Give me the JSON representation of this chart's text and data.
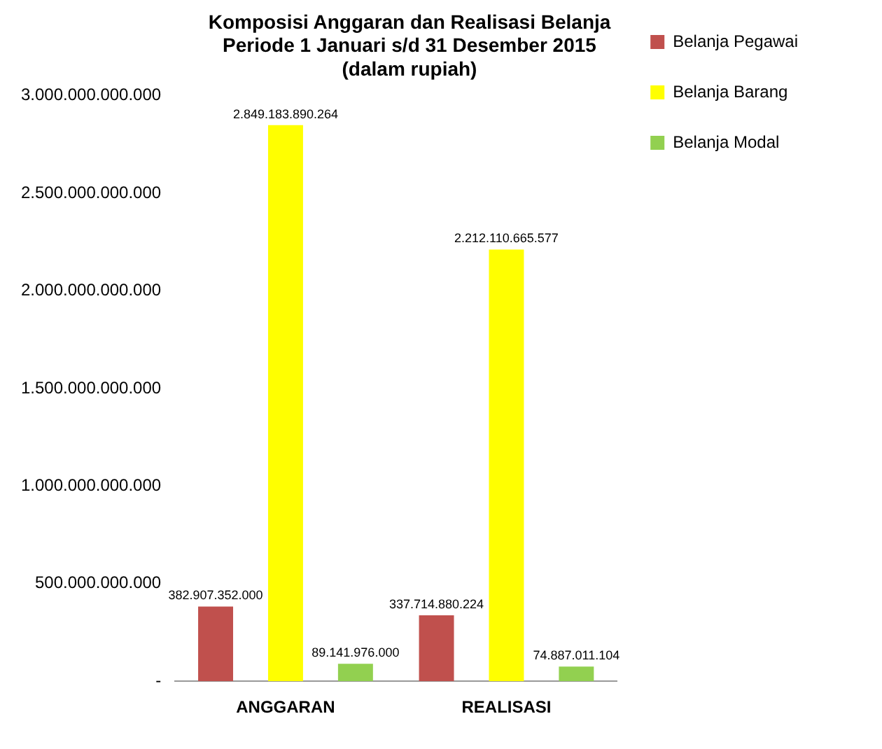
{
  "chart_data": {
    "type": "bar",
    "title": "Komposisi Anggaran dan Realisasi Belanja",
    "subtitle": "Periode 1 Januari s/d 31 Desember 2015\n(dalam rupiah)",
    "categories": [
      "ANGGARAN",
      "REALISASI"
    ],
    "series": [
      {
        "name": "Belanja Pegawai",
        "color": "#c0504d",
        "values": [
          382907352000,
          337714880224
        ],
        "value_labels": [
          "382.907.352.000",
          "337.714.880.224"
        ]
      },
      {
        "name": "Belanja Barang",
        "color": "#ffff00",
        "values": [
          2849183890264,
          2212110665577
        ],
        "value_labels": [
          "2.849.183.890.264",
          "2.212.110.665.577"
        ]
      },
      {
        "name": "Belanja Modal",
        "color": "#92d050",
        "values": [
          89141976000,
          74887011104
        ],
        "value_labels": [
          "89.141.976.000",
          "74.887.011.104"
        ]
      }
    ],
    "ylim": [
      0,
      3000000000000
    ],
    "yticks": [
      {
        "value": 0,
        "label": "-"
      },
      {
        "value": 500000000000,
        "label": "500.000.000.000"
      },
      {
        "value": 1000000000000,
        "label": "1.000.000.000.000"
      },
      {
        "value": 1500000000000,
        "label": "1.500.000.000.000"
      },
      {
        "value": 2000000000000,
        "label": "2.000.000.000.000"
      },
      {
        "value": 2500000000000,
        "label": "2.500.000.000.000"
      },
      {
        "value": 3000000000000,
        "label": "3.000.000.000.000"
      }
    ],
    "grid": false,
    "legend": "top right"
  }
}
